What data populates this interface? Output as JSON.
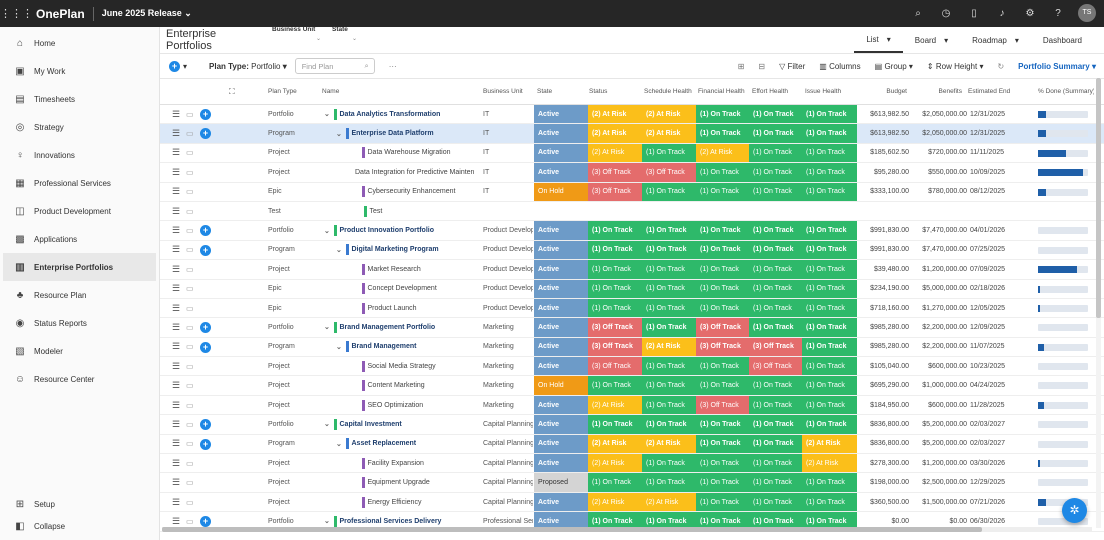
{
  "topbar": {
    "app": "OnePlan",
    "release": "June 2025 Release",
    "release_caret": "⌄",
    "avatar": "TS"
  },
  "sidebar": {
    "items": [
      {
        "label": "Home",
        "icon": "⌂"
      },
      {
        "label": "My Work",
        "icon": "▣"
      },
      {
        "label": "Timesheets",
        "icon": "▤"
      },
      {
        "label": "Strategy",
        "icon": "◎"
      },
      {
        "label": "Innovations",
        "icon": "♀"
      },
      {
        "label": "Professional Services",
        "icon": "▦"
      },
      {
        "label": "Product Development",
        "icon": "◫"
      },
      {
        "label": "Applications",
        "icon": "▩"
      },
      {
        "label": "Enterprise Portfolios",
        "icon": "▥"
      },
      {
        "label": "Resource Plan",
        "icon": "♣"
      },
      {
        "label": "Status Reports",
        "icon": "◉"
      },
      {
        "label": "Modeler",
        "icon": "▧"
      },
      {
        "label": "Resource Center",
        "icon": "☺"
      }
    ],
    "setup": "Setup",
    "collapse": "Collapse"
  },
  "header": {
    "title": "Enterprise Portfolios",
    "filter_bu": "Business Unit",
    "filter_state": "State",
    "views": [
      "List",
      "Board",
      "Roadmap",
      "Dashboard"
    ]
  },
  "toolbar": {
    "plan_type_label": "Plan Type:",
    "plan_type_value": "Portfolio",
    "search_placeholder": "Find Plan",
    "more": "···",
    "filter": "Filter",
    "columns": "Columns",
    "group": "Group",
    "row_height": "Row Height",
    "summary": "Portfolio Summary"
  },
  "columns": [
    "Plan Type",
    "Name",
    "Business Unit",
    "State",
    "Status",
    "Schedule Health",
    "Financial Health",
    "Effort Health",
    "Issue Health",
    "Budget",
    "Benefits",
    "Estimated End",
    "% Done (Summary)"
  ],
  "rows": [
    {
      "type": "Portfolio",
      "name": "Data Analytics Transformation",
      "lvl": 0,
      "bu": "IT",
      "state": "Active",
      "status": "(2) At Risk",
      "sched": "(2) At Risk",
      "fin": "(1) On Track",
      "eff": "(1) On Track",
      "iss": "(1) On Track",
      "budget": "$613,982.50",
      "benefits": "$2,050,000.00",
      "end": "12/31/2025",
      "done": 0.15
    },
    {
      "type": "Program",
      "name": "Enterprise Data Platform",
      "lvl": 1,
      "bu": "IT",
      "state": "Active",
      "status": "(2) At Risk",
      "sched": "(2) At Risk",
      "fin": "(1) On Track",
      "eff": "(1) On Track",
      "iss": "(1) On Track",
      "budget": "$613,982.50",
      "benefits": "$2,050,000.00",
      "end": "12/31/2025",
      "done": 0.15
    },
    {
      "type": "Project",
      "name": "Data Warehouse Migration",
      "lvl": 2,
      "bu": "IT",
      "state": "Active",
      "status": "(2) At Risk",
      "sched": "(1) On Track",
      "fin": "(2) At Risk",
      "eff": "(1) On Track",
      "iss": "(1) On Track",
      "budget": "$185,602.50",
      "benefits": "$720,000.00",
      "end": "11/11/2025",
      "done": 0.55
    },
    {
      "type": "Project",
      "name": "Data Integration for Predictive Maintenance",
      "lvl": 2,
      "bu": "IT",
      "state": "Active",
      "status": "(3) Off Track",
      "sched": "(3) Off Track",
      "fin": "(1) On Track",
      "eff": "(1) On Track",
      "iss": "(1) On Track",
      "budget": "$95,280.00",
      "benefits": "$550,000.00",
      "end": "10/09/2025",
      "done": 0.9
    },
    {
      "type": "Epic",
      "name": "Cybersecurity Enhancement",
      "lvl": 2,
      "bu": "IT",
      "state": "On Hold",
      "status": "(3) Off Track",
      "sched": "(1) On Track",
      "fin": "(1) On Track",
      "eff": "(1) On Track",
      "iss": "(1) On Track",
      "budget": "$333,100.00",
      "benefits": "$780,000.00",
      "end": "08/12/2025",
      "done": 0.15
    },
    {
      "type": "Test",
      "name": "Test",
      "lvl": 1,
      "bu": "",
      "state": "",
      "status": "",
      "sched": "",
      "fin": "",
      "eff": "",
      "iss": "",
      "budget": "",
      "benefits": "",
      "end": "",
      "done": 0
    },
    {
      "type": "Portfolio",
      "name": "Product Innovation Portfolio",
      "lvl": 0,
      "bu": "Product Development",
      "state": "Active",
      "status": "(1) On Track",
      "sched": "(1) On Track",
      "fin": "(1) On Track",
      "eff": "(1) On Track",
      "iss": "(1) On Track",
      "budget": "$991,830.00",
      "benefits": "$7,470,000.00",
      "end": "04/01/2026",
      "done": 0
    },
    {
      "type": "Program",
      "name": "Digital Marketing Program",
      "lvl": 1,
      "bu": "Product Development",
      "state": "Active",
      "status": "(1) On Track",
      "sched": "(1) On Track",
      "fin": "(1) On Track",
      "eff": "(1) On Track",
      "iss": "(1) On Track",
      "budget": "$991,830.00",
      "benefits": "$7,470,000.00",
      "end": "07/25/2025",
      "done": 0
    },
    {
      "type": "Project",
      "name": "Market Research",
      "lvl": 2,
      "bu": "Product Development",
      "state": "Active",
      "status": "(1) On Track",
      "sched": "(1) On Track",
      "fin": "(1) On Track",
      "eff": "(1) On Track",
      "iss": "(1) On Track",
      "budget": "$39,480.00",
      "benefits": "$1,200,000.00",
      "end": "07/09/2025",
      "done": 0.78
    },
    {
      "type": "Epic",
      "name": "Concept Development",
      "lvl": 2,
      "bu": "Product Development",
      "state": "Active",
      "status": "(1) On Track",
      "sched": "(1) On Track",
      "fin": "(1) On Track",
      "eff": "(1) On Track",
      "iss": "(1) On Track",
      "budget": "$234,190.00",
      "benefits": "$5,000,000.00",
      "end": "02/18/2026",
      "done": 0.03
    },
    {
      "type": "Epic",
      "name": "Product Launch",
      "lvl": 2,
      "bu": "Product Development",
      "state": "Active",
      "status": "(1) On Track",
      "sched": "(1) On Track",
      "fin": "(1) On Track",
      "eff": "(1) On Track",
      "iss": "(1) On Track",
      "budget": "$718,160.00",
      "benefits": "$1,270,000.00",
      "end": "12/05/2025",
      "done": 0.03
    },
    {
      "type": "Portfolio",
      "name": "Brand Management Portfolio",
      "lvl": 0,
      "bu": "Marketing",
      "state": "Active",
      "status": "(3) Off Track",
      "sched": "(1) On Track",
      "fin": "(3) Off Track",
      "eff": "(1) On Track",
      "iss": "(1) On Track",
      "budget": "$985,280.00",
      "benefits": "$2,200,000.00",
      "end": "12/09/2025",
      "done": 0
    },
    {
      "type": "Program",
      "name": "Brand Management",
      "lvl": 1,
      "bu": "Marketing",
      "state": "Active",
      "status": "(3) Off Track",
      "sched": "(2) At Risk",
      "fin": "(3) Off Track",
      "eff": "(3) Off Track",
      "iss": "(1) On Track",
      "budget": "$985,280.00",
      "benefits": "$2,200,000.00",
      "end": "11/07/2025",
      "done": 0.12
    },
    {
      "type": "Project",
      "name": "Social Media Strategy",
      "lvl": 2,
      "bu": "Marketing",
      "state": "Active",
      "status": "(3) Off Track",
      "sched": "(1) On Track",
      "fin": "(1) On Track",
      "eff": "(3) Off Track",
      "iss": "(1) On Track",
      "budget": "$105,040.00",
      "benefits": "$600,000.00",
      "end": "10/23/2025",
      "done": 0
    },
    {
      "type": "Project",
      "name": "Content Marketing",
      "lvl": 2,
      "bu": "Marketing",
      "state": "On Hold",
      "status": "(1) On Track",
      "sched": "(1) On Track",
      "fin": "(1) On Track",
      "eff": "(1) On Track",
      "iss": "(1) On Track",
      "budget": "$695,290.00",
      "benefits": "$1,000,000.00",
      "end": "04/24/2025",
      "done": 0
    },
    {
      "type": "Project",
      "name": "SEO Optimization",
      "lvl": 2,
      "bu": "Marketing",
      "state": "Active",
      "status": "(2) At Risk",
      "sched": "(1) On Track",
      "fin": "(3) Off Track",
      "eff": "(1) On Track",
      "iss": "(1) On Track",
      "budget": "$184,950.00",
      "benefits": "$600,000.00",
      "end": "11/28/2025",
      "done": 0.12
    },
    {
      "type": "Portfolio",
      "name": "Capital Investment",
      "lvl": 0,
      "bu": "Capital Planning",
      "state": "Active",
      "status": "(1) On Track",
      "sched": "(1) On Track",
      "fin": "(1) On Track",
      "eff": "(1) On Track",
      "iss": "(1) On Track",
      "budget": "$836,800.00",
      "benefits": "$5,200,000.00",
      "end": "02/03/2027",
      "done": 0
    },
    {
      "type": "Program",
      "name": "Asset Replacement",
      "lvl": 1,
      "bu": "Capital Planning",
      "state": "Active",
      "status": "(2) At Risk",
      "sched": "(2) At Risk",
      "fin": "(1) On Track",
      "eff": "(1) On Track",
      "iss": "(2) At Risk",
      "budget": "$836,800.00",
      "benefits": "$5,200,000.00",
      "end": "02/03/2027",
      "done": 0
    },
    {
      "type": "Project",
      "name": "Facility Expansion",
      "lvl": 2,
      "bu": "Capital Planning",
      "state": "Active",
      "status": "(2) At Risk",
      "sched": "(1) On Track",
      "fin": "(1) On Track",
      "eff": "(1) On Track",
      "iss": "(2) At Risk",
      "budget": "$278,300.00",
      "benefits": "$1,200,000.00",
      "end": "03/30/2026",
      "done": 0.04
    },
    {
      "type": "Project",
      "name": "Equipment Upgrade",
      "lvl": 2,
      "bu": "Capital Planning",
      "state": "Proposed",
      "status": "(1) On Track",
      "sched": "(1) On Track",
      "fin": "(1) On Track",
      "eff": "(1) On Track",
      "iss": "(1) On Track",
      "budget": "$198,000.00",
      "benefits": "$2,500,000.00",
      "end": "12/29/2025",
      "done": 0
    },
    {
      "type": "Project",
      "name": "Energy Efficiency",
      "lvl": 2,
      "bu": "Capital Planning",
      "state": "Active",
      "status": "(2) At Risk",
      "sched": "(2) At Risk",
      "fin": "(1) On Track",
      "eff": "(1) On Track",
      "iss": "(1) On Track",
      "budget": "$360,500.00",
      "benefits": "$1,500,000.00",
      "end": "07/21/2026",
      "done": 0.15
    },
    {
      "type": "Portfolio",
      "name": "Professional Services Delivery",
      "lvl": 0,
      "bu": "Professional Services",
      "state": "Active",
      "status": "(1) On Track",
      "sched": "(1) On Track",
      "fin": "(1) On Track",
      "eff": "(1) On Track",
      "iss": "(1) On Track",
      "budget": "$0.00",
      "benefits": "$0.00",
      "end": "06/30/2026",
      "done": 0
    }
  ]
}
